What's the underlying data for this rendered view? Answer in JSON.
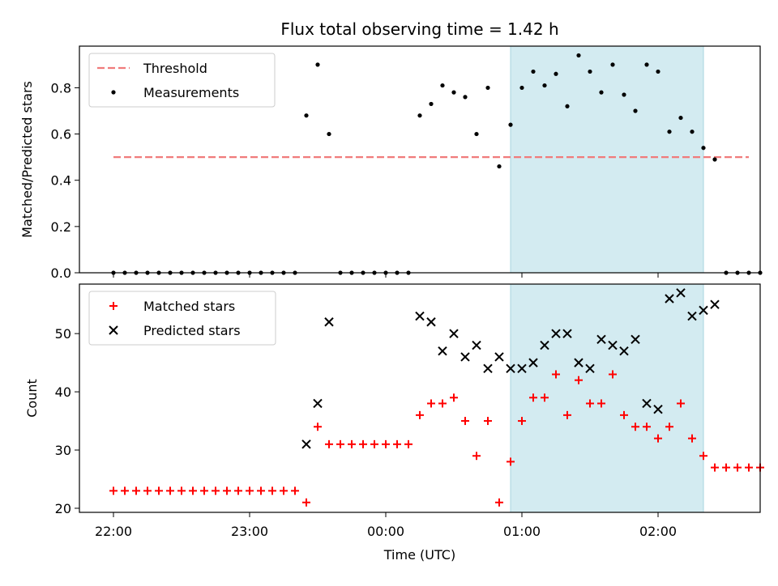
{
  "figure": {
    "title": "Flux total observing time = 1.42 h"
  },
  "chart_data": [
    {
      "type": "scatter",
      "ylabel": "Matched/Predicted stars",
      "xlabel": "",
      "ylim": [
        0.0,
        0.98
      ],
      "yticks": [
        "0.0",
        "0.2",
        "0.4",
        "0.6",
        "0.8"
      ],
      "ytick_values": [
        0.0,
        0.2,
        0.4,
        0.6,
        0.8
      ],
      "legend": {
        "placement": "top-left",
        "entries": [
          "Threshold",
          "Measurements"
        ]
      },
      "highlight_span": {
        "from": "00:55",
        "to": "02:20",
        "color": "#d3ebf1"
      },
      "threshold": {
        "name": "Threshold",
        "value": 0.5,
        "from": "22:00",
        "to": "02:40",
        "color": "#f07b7b"
      },
      "series": [
        {
          "name": "Measurements",
          "color": "#000000",
          "points": [
            [
              "22:00",
              0
            ],
            [
              "22:05",
              0
            ],
            [
              "22:10",
              0
            ],
            [
              "22:15",
              0
            ],
            [
              "22:20",
              0
            ],
            [
              "22:25",
              0
            ],
            [
              "22:30",
              0
            ],
            [
              "22:35",
              0
            ],
            [
              "22:40",
              0
            ],
            [
              "22:45",
              0
            ],
            [
              "22:50",
              0
            ],
            [
              "22:55",
              0
            ],
            [
              "23:00",
              0
            ],
            [
              "23:05",
              0
            ],
            [
              "23:10",
              0
            ],
            [
              "23:15",
              0
            ],
            [
              "23:20",
              0
            ],
            [
              "23:25",
              0.68
            ],
            [
              "23:30",
              0.9
            ],
            [
              "23:35",
              0.6
            ],
            [
              "23:40",
              0
            ],
            [
              "23:45",
              0
            ],
            [
              "23:50",
              0
            ],
            [
              "23:55",
              0
            ],
            [
              "00:00",
              0
            ],
            [
              "00:05",
              0
            ],
            [
              "00:10",
              0
            ],
            [
              "00:15",
              0.68
            ],
            [
              "00:20",
              0.73
            ],
            [
              "00:25",
              0.81
            ],
            [
              "00:30",
              0.78
            ],
            [
              "00:35",
              0.76
            ],
            [
              "00:40",
              0.6
            ],
            [
              "00:45",
              0.8
            ],
            [
              "00:50",
              0.46
            ],
            [
              "00:55",
              0.64
            ],
            [
              "01:00",
              0.8
            ],
            [
              "01:05",
              0.87
            ],
            [
              "01:10",
              0.81
            ],
            [
              "01:15",
              0.86
            ],
            [
              "01:20",
              0.72
            ],
            [
              "01:25",
              0.94
            ],
            [
              "01:30",
              0.87
            ],
            [
              "01:35",
              0.78
            ],
            [
              "01:40",
              0.9
            ],
            [
              "01:45",
              0.77
            ],
            [
              "01:50",
              0.7
            ],
            [
              "01:55",
              0.9
            ],
            [
              "02:00",
              0.87
            ],
            [
              "02:05",
              0.61
            ],
            [
              "02:10",
              0.67
            ],
            [
              "02:15",
              0.61
            ],
            [
              "02:20",
              0.54
            ],
            [
              "02:25",
              0.49
            ],
            [
              "02:30",
              0
            ],
            [
              "02:35",
              0
            ],
            [
              "02:40",
              0
            ],
            [
              "02:45",
              0
            ]
          ]
        }
      ]
    },
    {
      "type": "scatter",
      "ylabel": "Count",
      "xlabel": "Time (UTC)",
      "ylim": [
        19.3,
        58.5
      ],
      "yticks": [
        "20",
        "30",
        "40",
        "50"
      ],
      "ytick_values": [
        20,
        30,
        40,
        50
      ],
      "xlim": [
        "21:45",
        "02:45"
      ],
      "xticks": [
        "22:00",
        "23:00",
        "00:00",
        "01:00",
        "02:00"
      ],
      "legend": {
        "placement": "top-left",
        "entries": [
          "Matched stars",
          "Predicted stars"
        ]
      },
      "highlight_span": {
        "from": "00:55",
        "to": "02:20",
        "color": "#d3ebf1"
      },
      "series": [
        {
          "name": "Matched stars",
          "marker": "plus",
          "color": "#ff0000",
          "points": [
            [
              "22:00",
              23
            ],
            [
              "22:05",
              23
            ],
            [
              "22:10",
              23
            ],
            [
              "22:15",
              23
            ],
            [
              "22:20",
              23
            ],
            [
              "22:25",
              23
            ],
            [
              "22:30",
              23
            ],
            [
              "22:35",
              23
            ],
            [
              "22:40",
              23
            ],
            [
              "22:45",
              23
            ],
            [
              "22:50",
              23
            ],
            [
              "22:55",
              23
            ],
            [
              "23:00",
              23
            ],
            [
              "23:05",
              23
            ],
            [
              "23:10",
              23
            ],
            [
              "23:15",
              23
            ],
            [
              "23:20",
              23
            ],
            [
              "23:25",
              21
            ],
            [
              "23:30",
              34
            ],
            [
              "23:35",
              31
            ],
            [
              "23:40",
              31
            ],
            [
              "23:45",
              31
            ],
            [
              "23:50",
              31
            ],
            [
              "23:55",
              31
            ],
            [
              "00:00",
              31
            ],
            [
              "00:05",
              31
            ],
            [
              "00:10",
              31
            ],
            [
              "00:15",
              36
            ],
            [
              "00:20",
              38
            ],
            [
              "00:25",
              38
            ],
            [
              "00:30",
              39
            ],
            [
              "00:35",
              35
            ],
            [
              "00:40",
              29
            ],
            [
              "00:45",
              35
            ],
            [
              "00:50",
              21
            ],
            [
              "00:55",
              28
            ],
            [
              "01:00",
              35
            ],
            [
              "01:05",
              39
            ],
            [
              "01:10",
              39
            ],
            [
              "01:15",
              43
            ],
            [
              "01:20",
              36
            ],
            [
              "01:25",
              42
            ],
            [
              "01:30",
              38
            ],
            [
              "01:35",
              38
            ],
            [
              "01:40",
              43
            ],
            [
              "01:45",
              36
            ],
            [
              "01:50",
              34
            ],
            [
              "01:55",
              34
            ],
            [
              "02:00",
              32
            ],
            [
              "02:05",
              34
            ],
            [
              "02:10",
              38
            ],
            [
              "02:15",
              32
            ],
            [
              "02:20",
              29
            ],
            [
              "02:25",
              27
            ],
            [
              "02:30",
              27
            ],
            [
              "02:35",
              27
            ],
            [
              "02:40",
              27
            ],
            [
              "02:45",
              27
            ]
          ]
        },
        {
          "name": "Predicted stars",
          "marker": "x",
          "color": "#000000",
          "points": [
            [
              "23:25",
              31
            ],
            [
              "23:30",
              38
            ],
            [
              "23:35",
              52
            ],
            [
              "00:15",
              53
            ],
            [
              "00:20",
              52
            ],
            [
              "00:25",
              47
            ],
            [
              "00:30",
              50
            ],
            [
              "00:35",
              46
            ],
            [
              "00:40",
              48
            ],
            [
              "00:45",
              44
            ],
            [
              "00:50",
              46
            ],
            [
              "00:55",
              44
            ],
            [
              "01:00",
              44
            ],
            [
              "01:05",
              45
            ],
            [
              "01:10",
              48
            ],
            [
              "01:15",
              50
            ],
            [
              "01:20",
              50
            ],
            [
              "01:25",
              45
            ],
            [
              "01:30",
              44
            ],
            [
              "01:35",
              49
            ],
            [
              "01:40",
              48
            ],
            [
              "01:45",
              47
            ],
            [
              "01:50",
              49
            ],
            [
              "01:55",
              38
            ],
            [
              "02:00",
              37
            ],
            [
              "02:05",
              56
            ],
            [
              "02:10",
              57
            ],
            [
              "02:15",
              53
            ],
            [
              "02:20",
              54
            ],
            [
              "02:25",
              55
            ]
          ]
        }
      ]
    }
  ]
}
